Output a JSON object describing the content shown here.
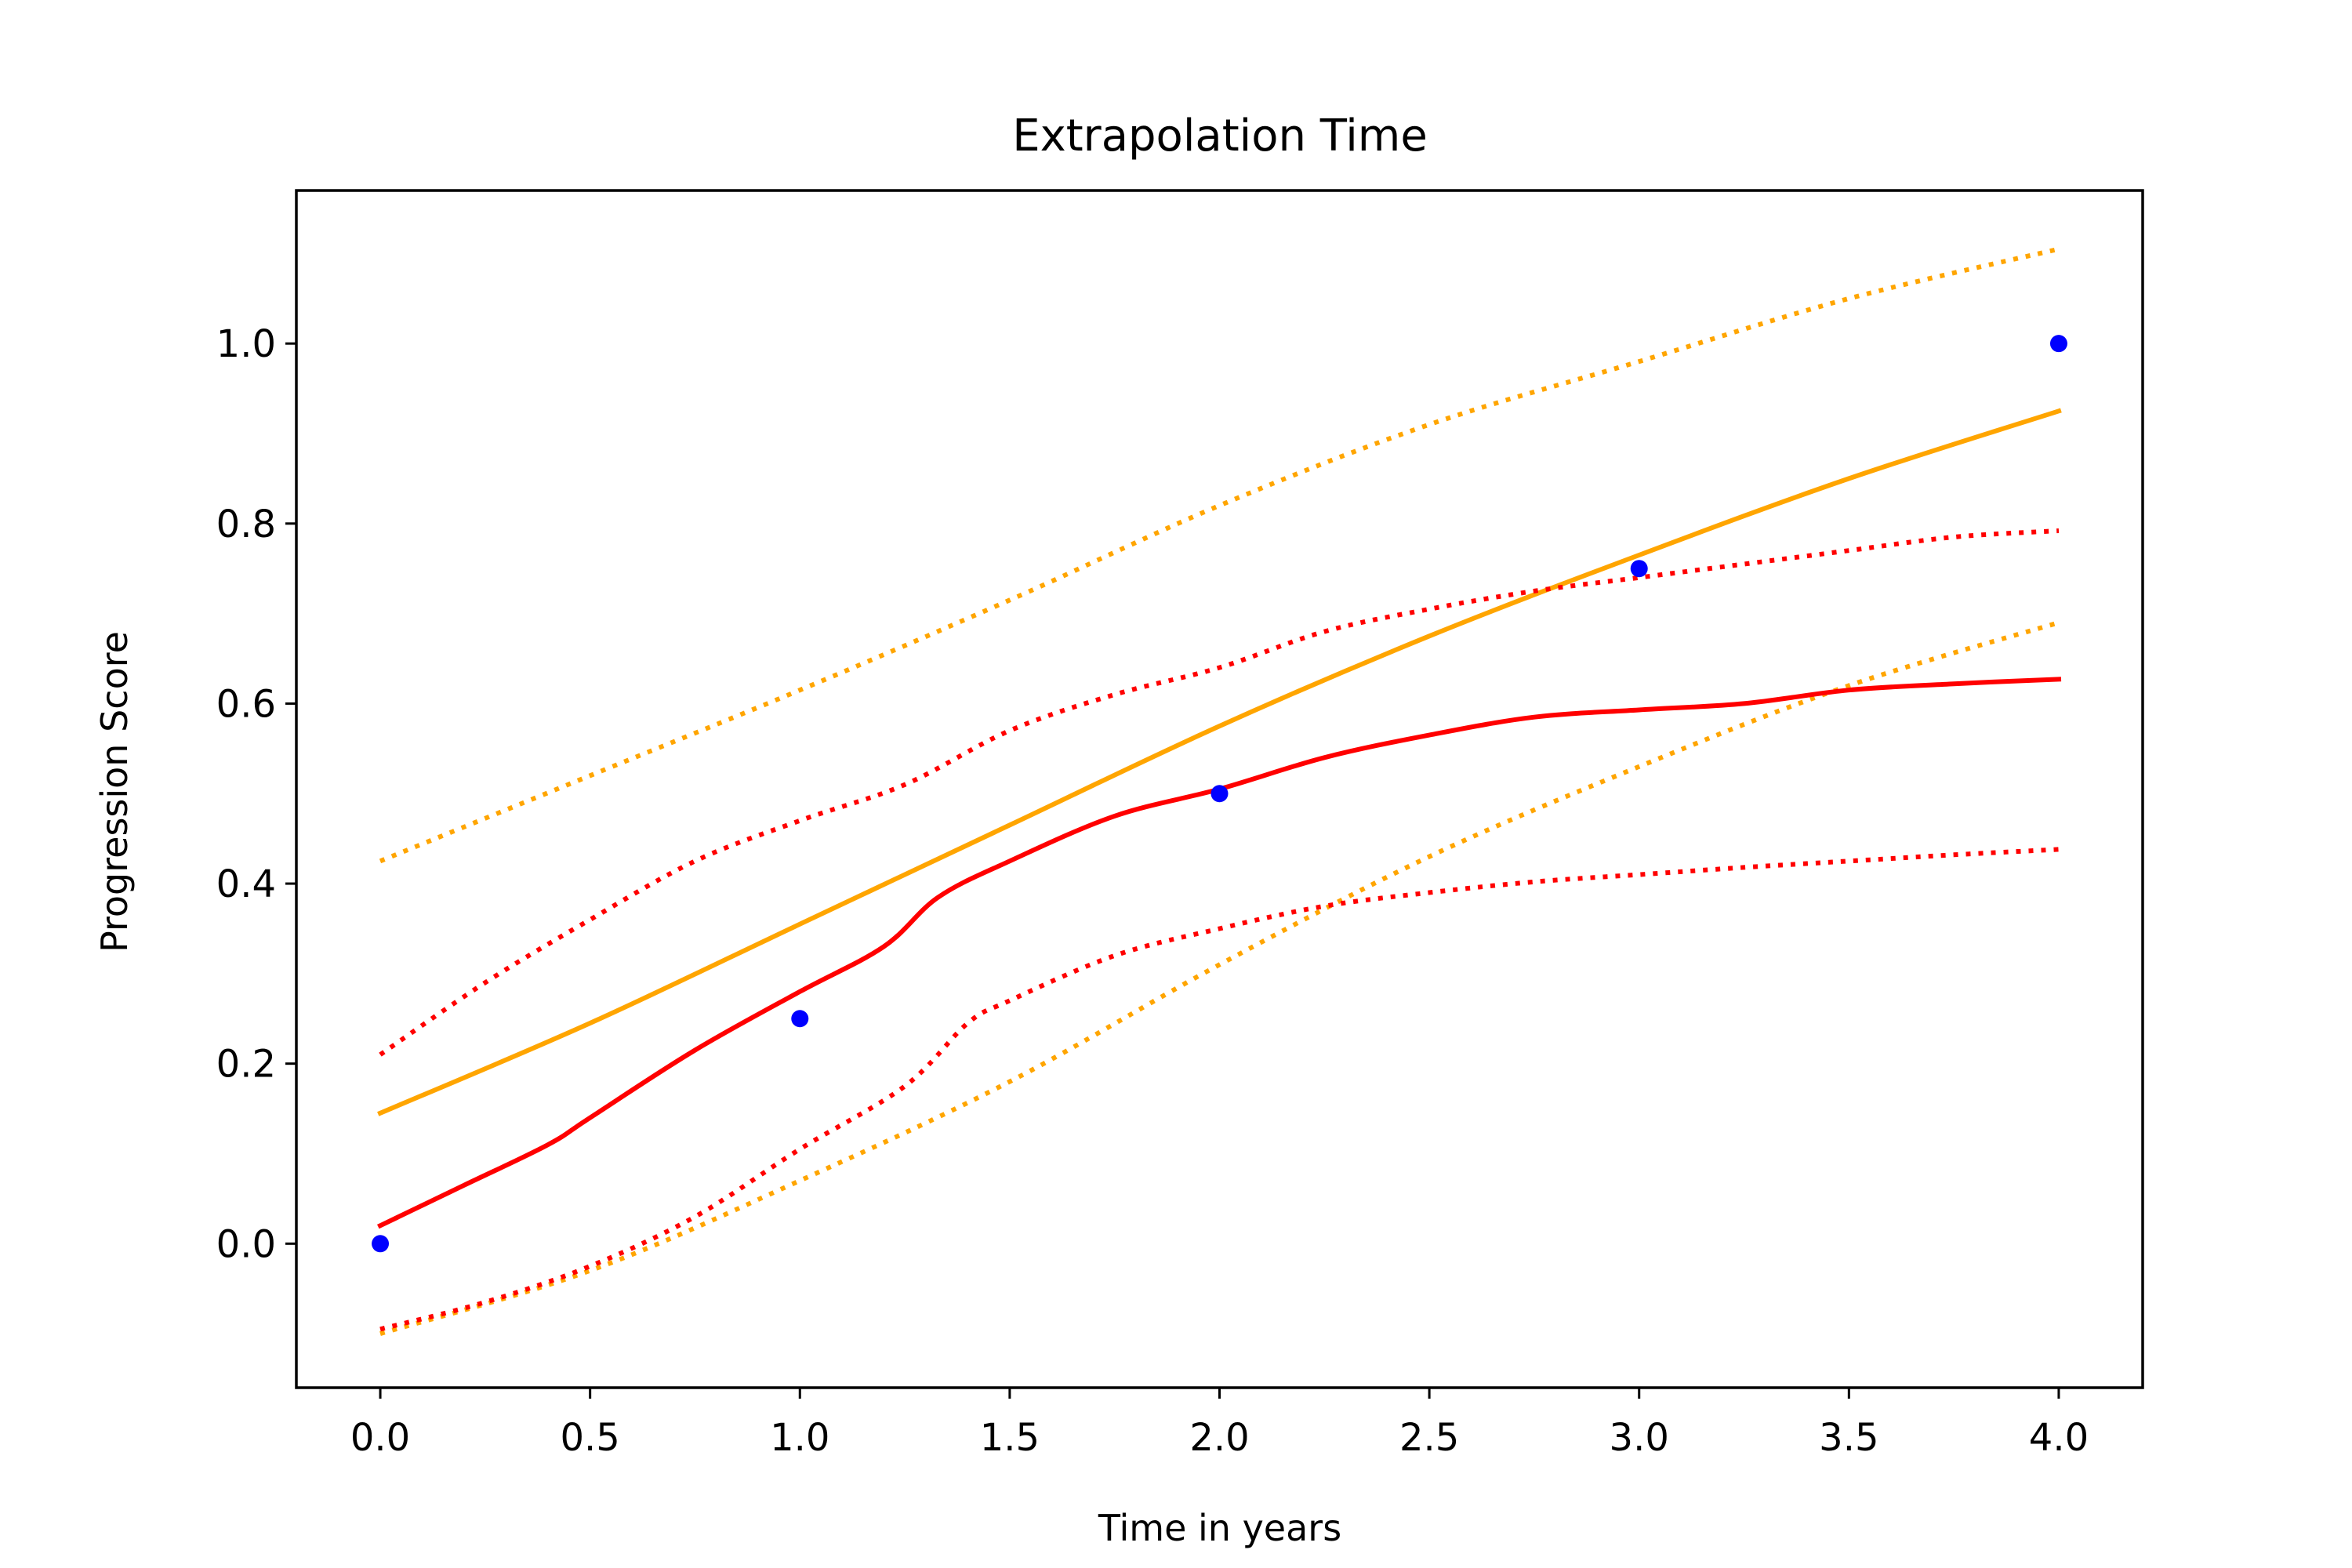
{
  "chart_data": {
    "type": "line",
    "title": "Extrapolation Time",
    "xlabel": "Time in years",
    "ylabel": "Progression Score",
    "xlim": [
      -0.2,
      4.2
    ],
    "ylim": [
      -0.16,
      1.17
    ],
    "xticks": [
      0.0,
      0.5,
      1.0,
      1.5,
      2.0,
      2.5,
      3.0,
      3.5,
      4.0
    ],
    "xtick_labels": [
      "0.0",
      "0.5",
      "1.0",
      "1.5",
      "2.0",
      "2.5",
      "3.0",
      "3.5",
      "4.0"
    ],
    "yticks": [
      0.0,
      0.2,
      0.4,
      0.6,
      0.8,
      1.0
    ],
    "ytick_labels": [
      "0.0",
      "0.2",
      "0.4",
      "0.6",
      "0.8",
      "1.0"
    ],
    "grid": false,
    "legend": "none",
    "series": [
      {
        "style": "solid",
        "color": "#ffa500",
        "x": [
          0.0,
          0.5,
          1.0,
          1.5,
          2.0,
          2.5,
          3.0,
          3.5,
          4.0
        ],
        "y": [
          0.145,
          0.245,
          0.355,
          0.465,
          0.575,
          0.675,
          0.765,
          0.85,
          0.925
        ]
      },
      {
        "style": "dotted",
        "color": "#ffa500",
        "x": [
          0.0,
          0.5,
          1.0,
          1.5,
          2.0,
          2.5,
          3.0,
          3.5,
          4.0
        ],
        "y": [
          0.425,
          0.52,
          0.615,
          0.715,
          0.82,
          0.91,
          0.98,
          1.05,
          1.105
        ]
      },
      {
        "style": "dotted",
        "color": "#ffa500",
        "x": [
          0.0,
          0.5,
          1.0,
          1.5,
          2.0,
          2.5,
          3.0,
          3.5,
          4.0
        ],
        "y": [
          -0.1,
          -0.03,
          0.07,
          0.18,
          0.31,
          0.43,
          0.53,
          0.62,
          0.69
        ]
      },
      {
        "style": "solid",
        "color": "#ff0000",
        "x": [
          0.0,
          0.2,
          0.4,
          0.5,
          0.75,
          1.0,
          1.2,
          1.33,
          1.5,
          1.75,
          2.0,
          2.25,
          2.5,
          2.75,
          3.0,
          3.25,
          3.5,
          3.75,
          4.0
        ],
        "y": [
          0.02,
          0.065,
          0.11,
          0.14,
          0.215,
          0.28,
          0.33,
          0.385,
          0.425,
          0.475,
          0.505,
          0.54,
          0.565,
          0.585,
          0.593,
          0.6,
          0.615,
          0.622,
          0.627
        ]
      },
      {
        "style": "dotted",
        "color": "#ff0000",
        "x": [
          0.0,
          0.25,
          0.5,
          0.75,
          1.0,
          1.25,
          1.5,
          1.75,
          2.0,
          2.25,
          2.5,
          2.75,
          3.0,
          3.25,
          3.5,
          3.75,
          4.0
        ],
        "y": [
          0.21,
          0.29,
          0.36,
          0.425,
          0.47,
          0.51,
          0.57,
          0.61,
          0.64,
          0.68,
          0.705,
          0.725,
          0.74,
          0.755,
          0.77,
          0.785,
          0.792
        ]
      },
      {
        "style": "dotted",
        "color": "#ff0000",
        "x": [
          0.0,
          0.25,
          0.5,
          0.75,
          1.0,
          1.25,
          1.4,
          1.5,
          1.75,
          2.0,
          2.25,
          2.5,
          2.75,
          3.0,
          3.25,
          3.5,
          3.75,
          4.0
        ],
        "y": [
          -0.095,
          -0.065,
          -0.025,
          0.03,
          0.105,
          0.175,
          0.245,
          0.27,
          0.32,
          0.35,
          0.375,
          0.39,
          0.402,
          0.41,
          0.418,
          0.425,
          0.432,
          0.438
        ]
      },
      {
        "style": "points",
        "color": "#0000ff",
        "x": [
          0,
          1,
          2,
          3,
          4
        ],
        "y": [
          0.0,
          0.25,
          0.5,
          0.75,
          1.0
        ]
      }
    ]
  }
}
